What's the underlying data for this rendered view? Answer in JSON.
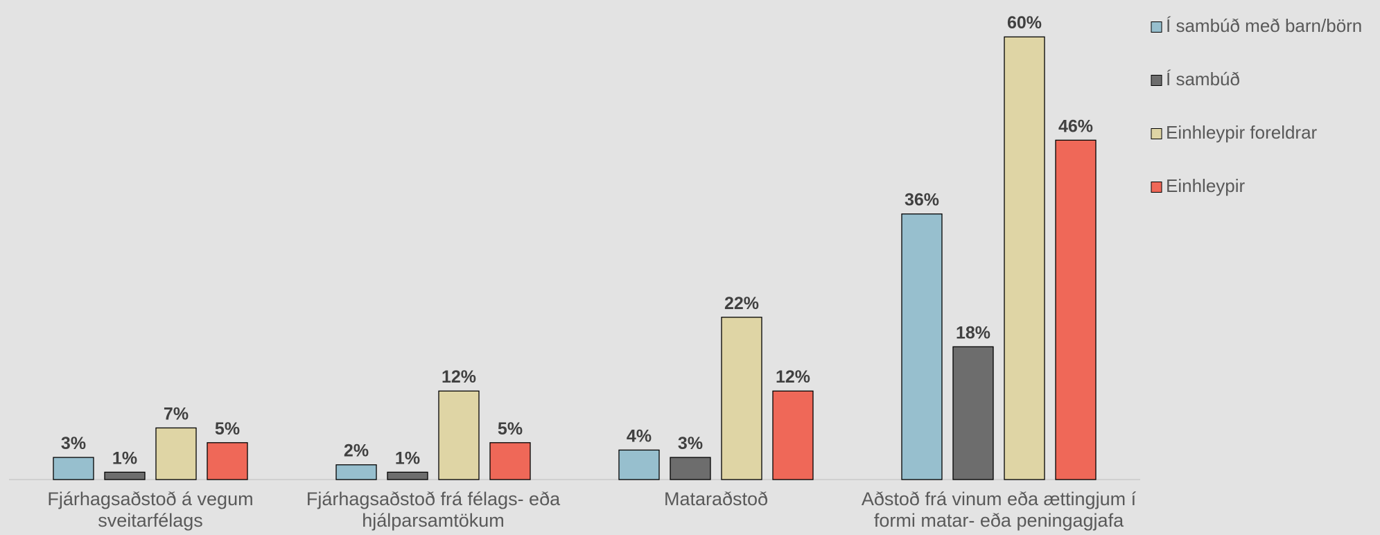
{
  "chart_data": {
    "type": "bar",
    "categories": [
      "Fjárhagsaðstoð á vegum sveitarfélags",
      "Fjárhagsaðstoð frá félags- eða hjálparsamtökum",
      "Mataraðstoð",
      "Aðstoð frá vinum eða ættingjum í formi matar- eða peningagjafa"
    ],
    "series": [
      {
        "name": "Í sambúð með barn/börn",
        "color": "#97bfce",
        "values": [
          3,
          2,
          4,
          36
        ],
        "value_labels": [
          "3%",
          "2%",
          "4%",
          "36%"
        ]
      },
      {
        "name": "Í sambúð",
        "color": "#6d6d6d",
        "values": [
          1,
          1,
          3,
          18
        ],
        "value_labels": [
          "1%",
          "1%",
          "3%",
          "18%"
        ]
      },
      {
        "name": "Einhleypir foreldrar",
        "color": "#dfd5a5",
        "values": [
          7,
          12,
          22,
          60
        ],
        "value_labels": [
          "7%",
          "12%",
          "22%",
          "60%"
        ]
      },
      {
        "name": "Einhleypir",
        "color": "#ef6858",
        "values": [
          5,
          5,
          12,
          46
        ],
        "value_labels": [
          "5%",
          "5%",
          "12%",
          "46%"
        ]
      }
    ],
    "ylim": [
      0,
      65
    ],
    "legend": "right"
  }
}
